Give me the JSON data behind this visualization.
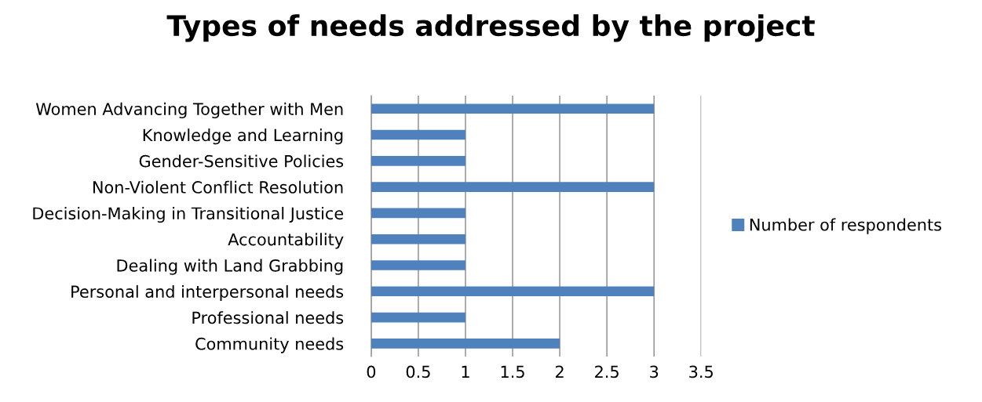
{
  "chart_data": {
    "type": "bar",
    "orientation": "horizontal",
    "title": "Types of needs addressed by the project",
    "categories": [
      "Women Advancing Together with Men",
      "Knowledge and Learning",
      "Gender-Sensitive Policies",
      "Non-Violent Conflict Resolution",
      "Decision-Making in Transitional Justice",
      "Accountability",
      "Dealing with Land Grabbing",
      "Personal and interpersonal needs",
      "Professional needs",
      "Community needs"
    ],
    "series": [
      {
        "name": "Number of respondents",
        "color": "#4f81bd",
        "values": [
          3,
          1,
          1,
          3,
          1,
          1,
          1,
          3,
          1,
          2
        ]
      }
    ],
    "xlim": [
      0,
      3.5
    ],
    "xticks": [
      0,
      0.5,
      1,
      1.5,
      2,
      2.5,
      3,
      3.5
    ],
    "grid": "x",
    "legend": "right"
  }
}
